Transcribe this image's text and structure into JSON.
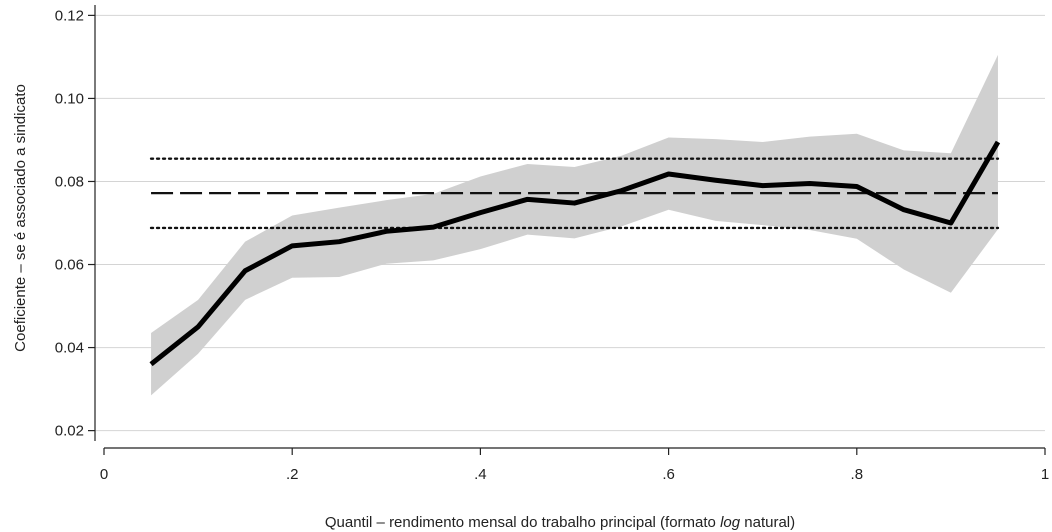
{
  "chart_data": {
    "type": "line",
    "xlabel_prefix": "Quantil – rendimento mensal do trabalho principal (formato ",
    "xlabel_italic": "log",
    "xlabel_suffix": " natural)",
    "ylabel": "Coeficiente – se é associado a sindicato",
    "xlim": [
      0,
      1
    ],
    "ylim": [
      0.0175,
      0.1225
    ],
    "x_ticks": [
      0,
      0.2,
      0.4,
      0.6,
      0.8,
      1
    ],
    "x_tick_labels": [
      "0",
      ".2",
      ".4",
      ".6",
      ".8",
      "1"
    ],
    "y_ticks": [
      0.02,
      0.04,
      0.06,
      0.08,
      0.1,
      0.12
    ],
    "y_tick_labels": [
      "0.02",
      "0.04",
      "0.06",
      "0.08",
      "0.10",
      "0.12"
    ],
    "grid": "horizontal",
    "x": [
      0.05,
      0.1,
      0.15,
      0.2,
      0.25,
      0.3,
      0.35,
      0.4,
      0.45,
      0.5,
      0.55,
      0.6,
      0.65,
      0.7,
      0.75,
      0.8,
      0.85,
      0.9,
      0.95
    ],
    "series": [
      {
        "style": "solid",
        "color": "#000000",
        "values": [
          0.036,
          0.045,
          0.0585,
          0.0645,
          0.0655,
          0.068,
          0.069,
          0.0725,
          0.0757,
          0.0748,
          0.0778,
          0.0818,
          0.0803,
          0.079,
          0.0795,
          0.0788,
          0.0732,
          0.07,
          0.0895
        ]
      }
    ],
    "confidence_band": {
      "color": "#d0d0d0",
      "upper": [
        0.0435,
        0.0515,
        0.0655,
        0.0718,
        0.0737,
        0.0755,
        0.077,
        0.0812,
        0.0842,
        0.0835,
        0.0862,
        0.0906,
        0.0902,
        0.0895,
        0.0908,
        0.0915,
        0.0875,
        0.0868,
        0.1105
      ],
      "lower": [
        0.0285,
        0.0385,
        0.0515,
        0.0568,
        0.057,
        0.0602,
        0.061,
        0.0637,
        0.0672,
        0.0663,
        0.0692,
        0.0732,
        0.0705,
        0.0695,
        0.0683,
        0.0662,
        0.0588,
        0.0532,
        0.0685
      ]
    },
    "reference_lines": [
      {
        "style": "dashed",
        "value": 0.0772,
        "x_range": [
          0.05,
          0.95
        ]
      },
      {
        "style": "dotted",
        "value": 0.0855,
        "x_range": [
          0.05,
          0.95
        ]
      },
      {
        "style": "dotted",
        "value": 0.0688,
        "x_range": [
          0.05,
          0.95
        ]
      }
    ]
  }
}
